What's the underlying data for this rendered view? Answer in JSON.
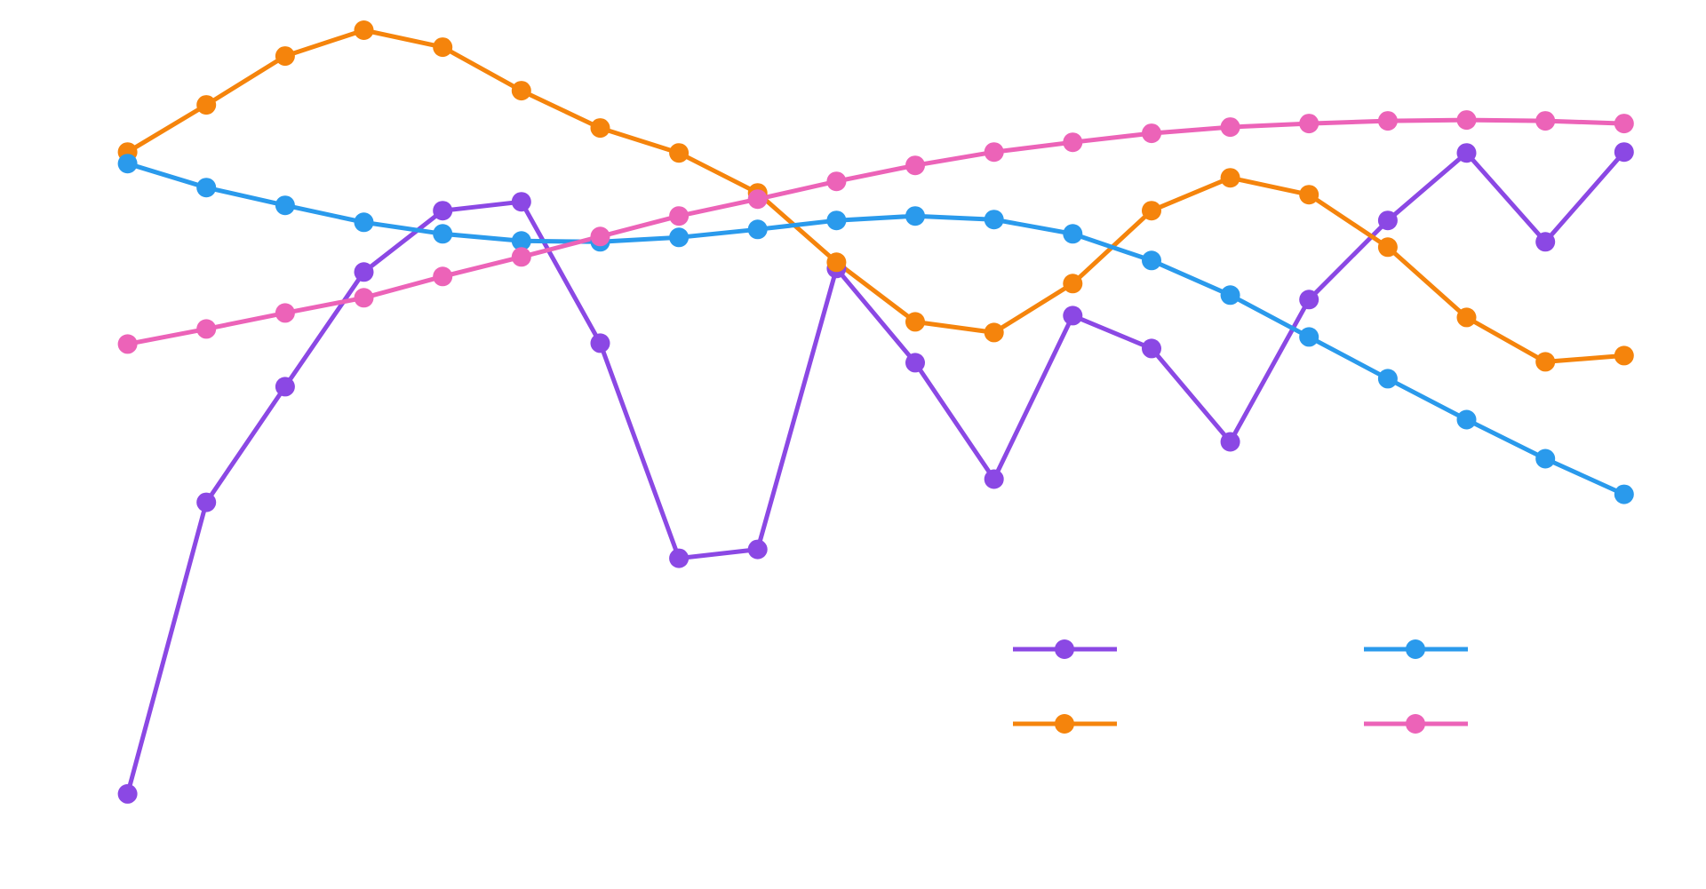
{
  "chart_data": {
    "type": "line",
    "title": "",
    "xlabel": "",
    "ylabel": "",
    "x": [
      0,
      1,
      2,
      3,
      4,
      5,
      6,
      7,
      8,
      9,
      10,
      11,
      12,
      13,
      14,
      15,
      16,
      17,
      18,
      19
    ],
    "xlim": [
      -1.62,
      20.04
    ],
    "ylim": [
      0,
      100
    ],
    "grid": false,
    "legend": "bottom-right",
    "series": [
      {
        "color": "#8b48e4",
        "values": [
          10.7,
          43.5,
          56.5,
          69.4,
          76.3,
          77.3,
          61.4,
          37.2,
          38.2,
          69.8,
          59.2,
          46.1,
          64.5,
          60.8,
          50.3,
          66.3,
          75.2,
          82.8,
          72.8,
          82.9
        ]
      },
      {
        "color": "#f5840c",
        "values": [
          82.9,
          88.2,
          93.7,
          96.6,
          94.7,
          89.8,
          85.6,
          82.8,
          78.3,
          70.5,
          63.8,
          62.6,
          68.1,
          76.3,
          80.0,
          78.1,
          72.2,
          64.3,
          59.3,
          60.0
        ]
      },
      {
        "color": "#2a9aec",
        "values": [
          81.6,
          78.9,
          76.9,
          75.0,
          73.7,
          72.9,
          72.8,
          73.3,
          74.2,
          75.2,
          75.7,
          75.3,
          73.7,
          70.7,
          66.8,
          62.1,
          57.4,
          52.8,
          48.4,
          44.4
        ]
      },
      {
        "color": "#ec63b8",
        "values": [
          61.3,
          63.0,
          64.8,
          66.5,
          68.9,
          71.1,
          73.4,
          75.7,
          77.6,
          79.6,
          81.4,
          82.9,
          84.0,
          85.0,
          85.7,
          86.1,
          86.4,
          86.5,
          86.4,
          86.1
        ]
      }
    ]
  }
}
